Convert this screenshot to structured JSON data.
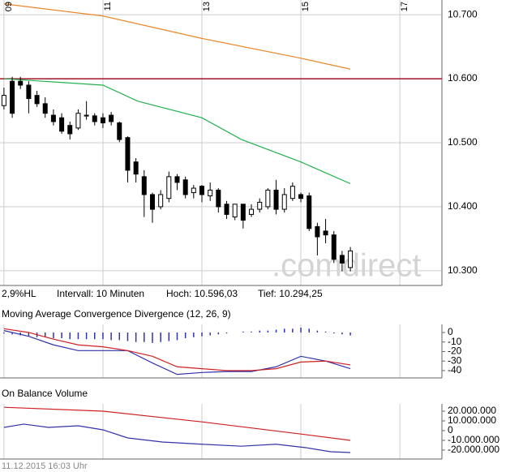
{
  "chart_data": [
    {
      "type": "candlestick",
      "xlim": [
        8.92,
        17.85
      ],
      "xticks": [
        {
          "value": 9,
          "label": "09"
        },
        11,
        13,
        15,
        17
      ],
      "ylim": [
        10277,
        10723
      ],
      "yticks": [
        {
          "value": 10700,
          "label": "10.700"
        },
        {
          "value": 10600,
          "label": "10.600"
        },
        {
          "value": 10500,
          "label": "10.500"
        },
        {
          "value": 10400,
          "label": "10.400"
        },
        {
          "value": 10300,
          "label": "10.300"
        }
      ],
      "grid": true,
      "up_color": "#ffffff",
      "down_color": "#000000",
      "x": [
        9,
        9.167,
        9.333,
        9.5,
        9.667,
        9.833,
        10,
        10.167,
        10.333,
        10.5,
        10.667,
        10.833,
        11,
        11.167,
        11.333,
        11.5,
        11.667,
        11.833,
        12,
        12.167,
        12.333,
        12.5,
        12.667,
        12.833,
        13,
        13.167,
        13.333,
        13.5,
        13.667,
        13.833,
        14,
        14.167,
        14.333,
        14.5,
        14.667,
        14.833,
        15,
        15.167,
        15.333,
        15.5,
        15.667,
        15.833,
        16
      ],
      "open": [
        10558,
        10596,
        10596,
        10590,
        10574,
        10561,
        10543,
        10539,
        10527,
        10523,
        10543,
        10542,
        10539,
        10543,
        10531,
        10508,
        10470,
        10447,
        10419,
        10400,
        10413,
        10447,
        10442,
        10422,
        10432,
        10417,
        10426,
        10404,
        10384,
        10404,
        10388,
        10396,
        10400,
        10426,
        10396,
        10413,
        10419,
        10417,
        10369,
        10362,
        10356,
        10324,
        10305
      ],
      "high": [
        10586,
        10603,
        10603,
        10596,
        10581,
        10571,
        10552,
        10546,
        10533,
        10552,
        10565,
        10546,
        10546,
        10548,
        10533,
        10510,
        10476,
        10457,
        10422,
        10426,
        10455,
        10451,
        10447,
        10434,
        10434,
        10438,
        10429,
        10409,
        10404,
        10404,
        10404,
        10413,
        10429,
        10442,
        10429,
        10438,
        10422,
        10422,
        10375,
        10381,
        10362,
        10331,
        10337
      ],
      "low": [
        10552,
        10539,
        10584,
        10546,
        10556,
        10539,
        10527,
        10514,
        10505,
        10520,
        10536,
        10527,
        10523,
        10527,
        10501,
        10438,
        10438,
        10384,
        10375,
        10396,
        10407,
        10426,
        10413,
        10413,
        10407,
        10409,
        10391,
        10381,
        10379,
        10366,
        10384,
        10391,
        10396,
        10388,
        10391,
        10409,
        10407,
        10362,
        10324,
        10343,
        10312,
        10299,
        10299
      ],
      "close": [
        10574,
        10546,
        10590,
        10569,
        10561,
        10546,
        10533,
        10518,
        10514,
        10546,
        10543,
        10533,
        10531,
        10533,
        10505,
        10457,
        10451,
        10419,
        10396,
        10419,
        10447,
        10438,
        10419,
        10429,
        10419,
        10426,
        10400,
        10388,
        10404,
        10379,
        10396,
        10407,
        10426,
        10396,
        10419,
        10432,
        10413,
        10366,
        10353,
        10356,
        10318,
        10312,
        10331
      ],
      "series": [
        {
          "color": "#e8872c",
          "x": [
            9,
            11,
            13,
            15,
            16
          ],
          "values": [
            10717,
            10698,
            10663,
            10632,
            10615
          ]
        },
        {
          "color": "#22b14c",
          "x": [
            9,
            11,
            11.7,
            13,
            13.8,
            15,
            16
          ],
          "values": [
            10600,
            10590,
            10565,
            10539,
            10505,
            10470,
            10436
          ]
        }
      ],
      "hline": {
        "value": 10600,
        "color": "#a0142a"
      },
      "info": [
        "2,9%HL",
        "Intervall: 10 Minuten",
        "Hoch: 10.596,03",
        "Tief: 10.294,25"
      ],
      "watermark": ".comdirect"
    },
    {
      "type": "line",
      "title": "Moving Average Convergence Divergence (12, 26, 9)",
      "ylim": [
        -47.7,
        8.5
      ],
      "yticks": [
        0,
        -10,
        -20,
        -30,
        -40
      ],
      "series": [
        {
          "type": "bar",
          "color": "#3333aa",
          "x": [
            9,
            9.167,
            9.333,
            9.5,
            9.667,
            9.833,
            10,
            10.167,
            10.333,
            10.5,
            10.667,
            10.833,
            11,
            11.167,
            11.333,
            11.5,
            11.667,
            11.833,
            12,
            12.167,
            12.333,
            12.5,
            12.667,
            12.833,
            13,
            13.167,
            13.333,
            13.5,
            13.667,
            13.833,
            14,
            14.167,
            14.333,
            14.5,
            14.667,
            14.833,
            15,
            15.167,
            15.333,
            15.5,
            15.667,
            15.833,
            16
          ],
          "values": [
            -1,
            -2,
            -3,
            -4,
            -5,
            -5,
            -6,
            -6,
            -7,
            -7,
            -7,
            -7,
            -7,
            -8,
            -8,
            -9,
            -10,
            -10,
            -11,
            -10,
            -9,
            -8,
            -6,
            -5,
            -4,
            -3,
            -2,
            -1,
            0,
            1,
            1,
            2,
            2,
            3,
            4,
            4,
            5,
            4,
            2,
            1,
            -1,
            -2,
            -3
          ]
        },
        {
          "color": "#3333aa",
          "x": [
            9,
            9.5,
            10,
            10.5,
            11,
            11.5,
            12,
            12.5,
            13,
            13.5,
            14,
            14.5,
            15,
            15.5,
            16
          ],
          "values": [
            2,
            -4,
            -13,
            -19,
            -19,
            -19,
            -32,
            -44,
            -42,
            -41,
            -41,
            -36,
            -25,
            -30,
            -38
          ]
        },
        {
          "color": "#d02020",
          "x": [
            9,
            9.5,
            10,
            10.5,
            11,
            11.5,
            12,
            12.5,
            13,
            13.5,
            14,
            14.5,
            15,
            15.5,
            16
          ],
          "values": [
            4,
            0,
            -7,
            -13,
            -15,
            -19,
            -25,
            -36,
            -38,
            -40,
            -40,
            -38,
            -31,
            -30,
            -34
          ]
        }
      ]
    },
    {
      "type": "line",
      "title": "On Balance Volume",
      "ylim": [
        -29200000,
        27500000
      ],
      "yticks": [
        {
          "value": 20000000,
          "label": "20.000.000"
        },
        {
          "value": 10000000,
          "label": "10.000.000"
        },
        0,
        {
          "value": -10000000,
          "label": "-10.000.000"
        },
        {
          "value": -20000000,
          "label": "-20.000.000"
        }
      ],
      "series": [
        {
          "color": "#d02020",
          "x": [
            9,
            11,
            13,
            15,
            16
          ],
          "values": [
            24000000,
            20000000,
            9000000,
            -3500000,
            -10000000
          ]
        },
        {
          "color": "#3333aa",
          "x": [
            9,
            9.4,
            9.9,
            10.5,
            11,
            11.5,
            12.2,
            13,
            13.8,
            14.5,
            15.1,
            15.6,
            16
          ],
          "values": [
            3300000,
            6700000,
            3300000,
            5000000,
            800000,
            -7500000,
            -11700000,
            -14000000,
            -16000000,
            -14000000,
            -17500000,
            -21700000,
            -22500000
          ]
        }
      ]
    }
  ],
  "footer": "11.12.2015 16:03 Uhr"
}
